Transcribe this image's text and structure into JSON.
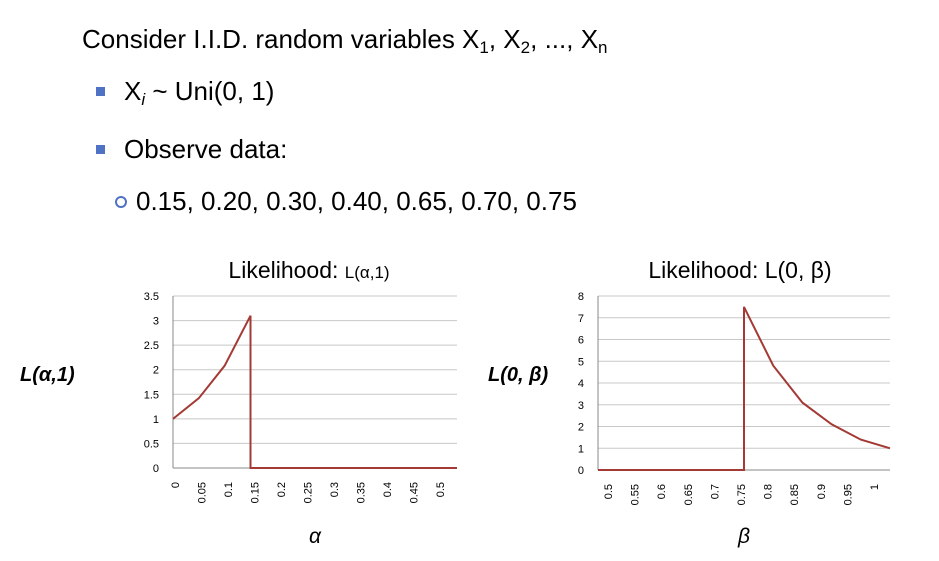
{
  "slide": {
    "line1": {
      "text": "Consider I.I.D. random variables X",
      "s1": "1",
      "sep1": ", X",
      "s2": "2",
      "sep2": ", ..., X",
      "sn": "n"
    },
    "bullet1": {
      "x": "X",
      "i": "i",
      "rest": " ~ Uni(0, 1)"
    },
    "bullet2": "Observe data:",
    "data_line": "0.15, 0.20, 0.30, 0.40, 0.65, 0.70, 0.75"
  },
  "colors": {
    "line": "#a33a35",
    "grid": "#c8c8c8",
    "bullet": "#4f72c4"
  },
  "chart_data": [
    {
      "type": "line",
      "title_main": "Likelihood:",
      "title_tail": "L(α,1)",
      "xlabel": "α",
      "ylabel": "L(α,1)",
      "ylim": [
        0,
        3.5
      ],
      "y_ticks": [
        "0",
        "0.5",
        "1",
        "1.5",
        "2",
        "2.5",
        "3",
        "3.5"
      ],
      "x_ticks": [
        "0",
        "0.05",
        "0.1",
        "0.15",
        "0.2",
        "0.25",
        "0.3",
        "0.35",
        "0.4",
        "0.45",
        "0.5"
      ],
      "xlim": [
        0,
        0.55
      ],
      "grid": true,
      "series": [
        {
          "x": [
            0,
            0.05,
            0.1,
            0.15,
            0.15,
            0.2,
            0.25,
            0.3,
            0.35,
            0.4,
            0.45,
            0.5,
            0.55
          ],
          "y": [
            1.0,
            1.42,
            2.08,
            3.1,
            0,
            0,
            0,
            0,
            0,
            0,
            0,
            0,
            0
          ]
        }
      ]
    },
    {
      "type": "line",
      "title": "Likelihood: L(0, β)",
      "xlabel": "β",
      "ylabel": "L(0, β)",
      "ylim": [
        0,
        8
      ],
      "y_ticks": [
        "0",
        "1",
        "2",
        "3",
        "4",
        "5",
        "6",
        "7",
        "8"
      ],
      "x_ticks": [
        "0.5",
        "0.55",
        "0.6",
        "0.65",
        "0.7",
        "0.75",
        "0.8",
        "0.85",
        "0.9",
        "0.95",
        "1"
      ],
      "xlim": [
        0.5,
        1.0
      ],
      "grid": true,
      "series": [
        {
          "x": [
            0.5,
            0.55,
            0.6,
            0.65,
            0.7,
            0.75,
            0.75,
            0.8,
            0.85,
            0.9,
            0.95,
            1.0
          ],
          "y": [
            0,
            0,
            0,
            0,
            0,
            0,
            7.5,
            4.8,
            3.1,
            2.1,
            1.4,
            1.0
          ]
        }
      ]
    }
  ]
}
